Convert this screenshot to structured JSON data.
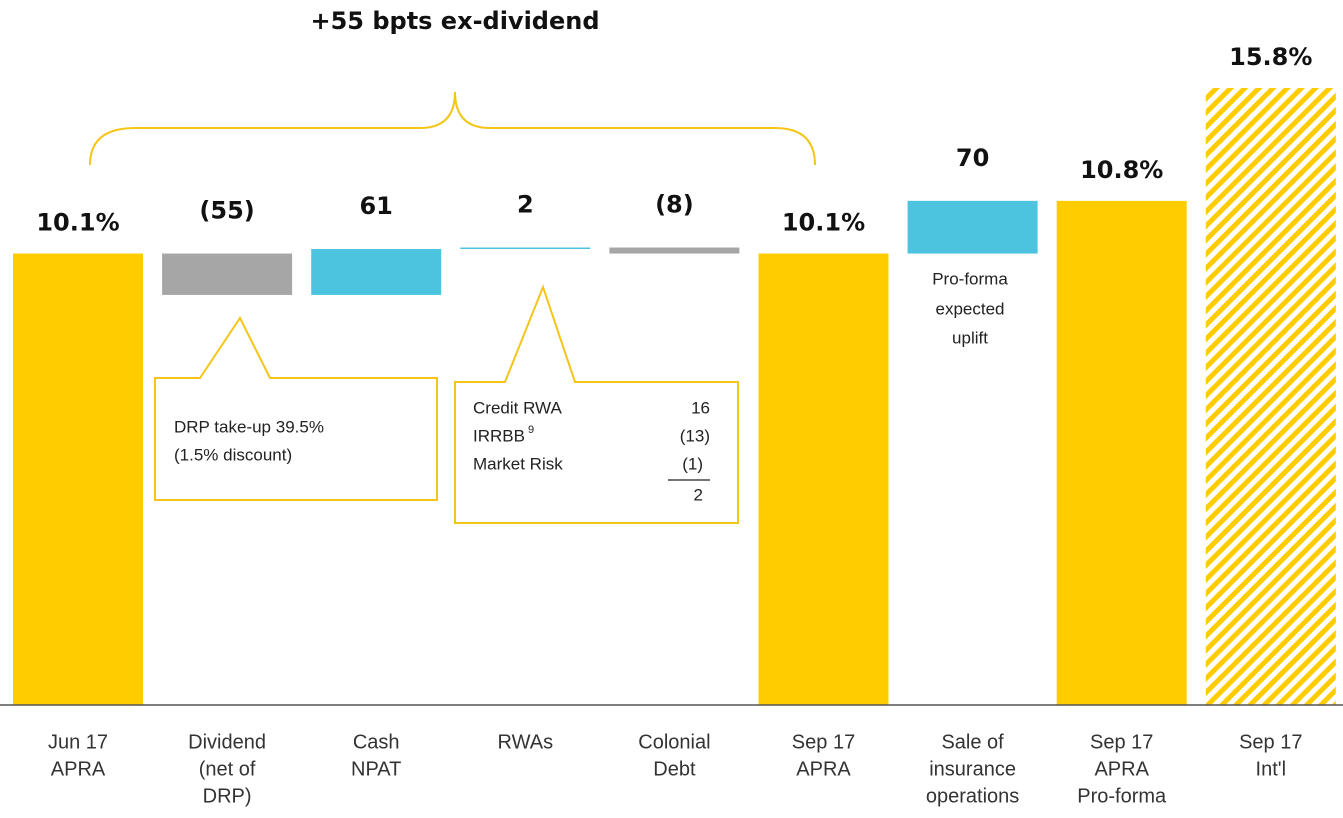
{
  "chart_data": {
    "type": "waterfall",
    "title": "+55 bpts ex-dividend",
    "categories": [
      [
        "Jun 17",
        "APRA"
      ],
      [
        "Dividend",
        "(net of",
        "DRP)"
      ],
      [
        "Cash",
        "NPAT"
      ],
      [
        "RWAs"
      ],
      [
        "Colonial",
        "Debt"
      ],
      [
        "Sep 17",
        "APRA"
      ],
      [
        "Sale of",
        "insurance",
        "operations"
      ],
      [
        "Sep 17",
        "APRA",
        "Pro-forma"
      ],
      [
        "Sep 17",
        "Int'l"
      ]
    ],
    "measure": [
      "absolute",
      "relative",
      "relative",
      "relative",
      "relative",
      "absolute",
      "relative",
      "absolute",
      "absolute"
    ],
    "values": [
      10.1,
      -55,
      61,
      2,
      -8,
      10.1,
      70,
      10.8,
      15.8
    ],
    "value_labels": [
      "10.1%",
      "(55)",
      "61",
      "2",
      "(8)",
      "10.1%",
      "70",
      "10.8%",
      "15.8%"
    ],
    "hatched": [
      false,
      false,
      false,
      false,
      false,
      false,
      false,
      false,
      true
    ],
    "colors": {
      "total": "#FFCC00",
      "increase": "#4CC4E0",
      "decrease": "#A6A6A6"
    },
    "ylim": [
      4.1,
      12.3
    ],
    "annotations": {
      "dividend_note": [
        "DRP take-up 39.5%",
        "(1.5% discount)"
      ],
      "rwa_breakdown": {
        "rows": [
          [
            "Credit RWA",
            "16"
          ],
          [
            "IRRBB",
            "(13)"
          ],
          [
            "Market Risk",
            "(1)"
          ]
        ],
        "superscript": "9",
        "total": "2"
      },
      "sale_note": [
        "Pro-forma",
        "expected",
        "uplift"
      ]
    }
  }
}
